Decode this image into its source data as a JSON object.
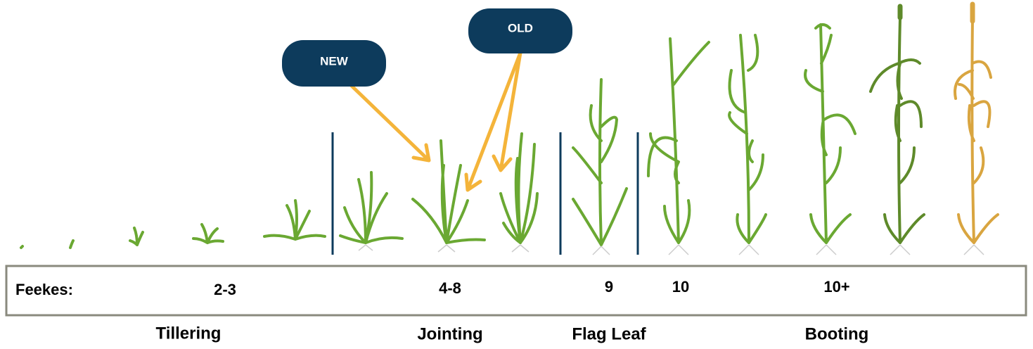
{
  "callouts": [
    "NEW",
    "OLD"
  ],
  "feekes_label": "Feekes:",
  "stages": [
    {
      "feekes": "2-3"
    },
    {
      "feekes": "4-8"
    },
    {
      "feekes": "9"
    },
    {
      "feekes": "10"
    },
    {
      "feekes": "10+"
    }
  ],
  "stage_names": [
    "Tillering",
    "Jointing",
    "Flag Leaf",
    "Booting"
  ]
}
